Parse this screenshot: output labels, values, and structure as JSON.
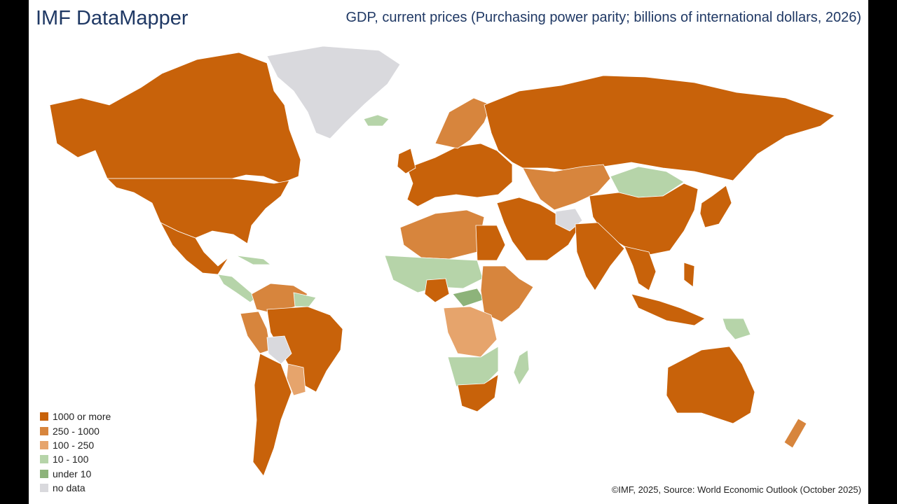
{
  "header": {
    "brand": "IMF DataMapper",
    "title": "GDP, current prices (Purchasing power parity; billions of international dollars, 2026)"
  },
  "legend": [
    {
      "label": "1000 or more",
      "color": "#c8620a"
    },
    {
      "label": "250 - 1000",
      "color": "#d7853d"
    },
    {
      "label": "100 - 250",
      "color": "#e6a46c"
    },
    {
      "label": "10 - 100",
      "color": "#b6d4a9"
    },
    {
      "label": "under 10",
      "color": "#8db37a"
    },
    {
      "label": "no data",
      "color": "#d9d9dd"
    }
  ],
  "footer": {
    "source": "©IMF, 2025, Source: World Economic Outlook (October 2025)"
  }
}
